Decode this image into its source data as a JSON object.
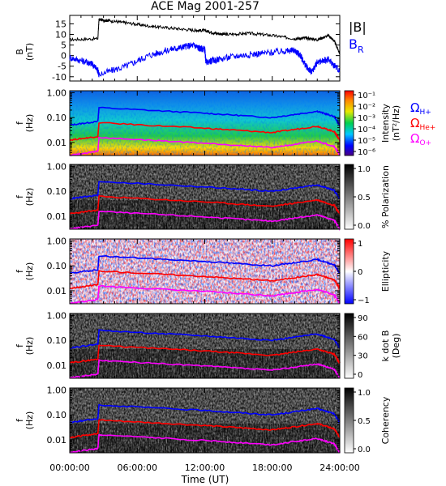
{
  "title": "ACE Mag 2001-257",
  "xlabel": "Time (UT)",
  "x_tick_labels": [
    "00:00:00",
    "06:00:00",
    "12:00:00",
    "18:00:00",
    "24:00:00"
  ],
  "freq_tick_labels": [
    "1.00",
    "0.10",
    "0.01"
  ],
  "line_colors": {
    "H": "#0000ff",
    "He": "#ff0000",
    "O": "#ff00ff",
    "B": "#000000",
    "BR": "#0000ff"
  },
  "panel1": {
    "ylabel_line1": "B",
    "ylabel_line2": "(nT)",
    "y_ticks": [
      "15",
      "10",
      "5",
      "0",
      "-5",
      "-10"
    ],
    "legend_B": "|B|",
    "legend_BR": "B",
    "legend_BR_sub": "R"
  },
  "freq_panel_ylabel": {
    "line1": "f",
    "line2": "(Hz)"
  },
  "panel2": {
    "colorbar_ticks": [
      "10⁻¹",
      "10⁻²",
      "10⁻³",
      "10⁻⁴",
      "10⁻⁵",
      "10⁻⁶"
    ],
    "colorbar_label1": "Intensity",
    "colorbar_label2": "(nT²/Hz)",
    "legend_H": "Ω",
    "legend_H_sub": "H+",
    "legend_He": "Ω",
    "legend_He_sub": "He+",
    "legend_O": "Ω",
    "legend_O_sub": "O+"
  },
  "panel3": {
    "colorbar_ticks": [
      "1.0",
      "0.5",
      "0.0"
    ],
    "colorbar_label": "% Polarization"
  },
  "panel4": {
    "colorbar_ticks": [
      "1",
      "0",
      "−1"
    ],
    "colorbar_label": "Ellipticity"
  },
  "panel5": {
    "colorbar_ticks": [
      "90",
      "60",
      "30",
      "0"
    ],
    "colorbar_label1": "k dot B",
    "colorbar_label2": "(Deg)"
  },
  "panel6": {
    "colorbar_ticks": [
      "1.0",
      "0.5",
      "0.0"
    ],
    "colorbar_label": "Coherency"
  },
  "chart_data": {
    "type": "line",
    "x_unit": "hours UT",
    "xlim": [
      0,
      24
    ],
    "magnitude_panel": {
      "ylim": [
        -12,
        19
      ],
      "series": [
        {
          "name": "|B|",
          "x": [
            0,
            2.5,
            2.6,
            3.5,
            5,
            7,
            9,
            11,
            12,
            13,
            14,
            16,
            18,
            20,
            21,
            22,
            23,
            23.5,
            24
          ],
          "values": [
            7.5,
            8,
            17,
            16.5,
            15.5,
            14,
            13,
            12,
            11.8,
            10.5,
            10,
            10.5,
            9.5,
            8,
            8.3,
            7.5,
            9.5,
            7,
            1
          ]
        },
        {
          "name": "B_R",
          "x": [
            0,
            1.5,
            2,
            2.5,
            2.6,
            5,
            7,
            9,
            10,
            11,
            11.5,
            12,
            12.1,
            13,
            15,
            17,
            19,
            20,
            20.5,
            21,
            21.5,
            22,
            23,
            24
          ],
          "values": [
            -1,
            -3,
            -4,
            -7,
            -9,
            -5,
            0,
            3,
            4,
            5,
            3.5,
            3,
            -3,
            -2,
            0,
            1,
            2,
            2.5,
            0,
            -5,
            -8,
            -3,
            -2,
            -7
          ]
        }
      ]
    },
    "frequency_panels": {
      "ylim": [
        0.003,
        1.2
      ],
      "y_scale": "log",
      "x": [
        0,
        2.5,
        2.6,
        12,
        18,
        22,
        23.5,
        24
      ],
      "series": [
        {
          "name": "Ω H+",
          "values": [
            0.05,
            0.07,
            0.25,
            0.15,
            0.1,
            0.18,
            0.11,
            0.05
          ]
        },
        {
          "name": "Ω He+",
          "values": [
            0.0125,
            0.0175,
            0.0625,
            0.0375,
            0.025,
            0.045,
            0.0275,
            0.0125
          ]
        },
        {
          "name": "Ω O+",
          "values": [
            0.0031,
            0.0044,
            0.0156,
            0.0094,
            0.0063,
            0.0113,
            0.0069,
            0.0031
          ]
        }
      ]
    }
  }
}
